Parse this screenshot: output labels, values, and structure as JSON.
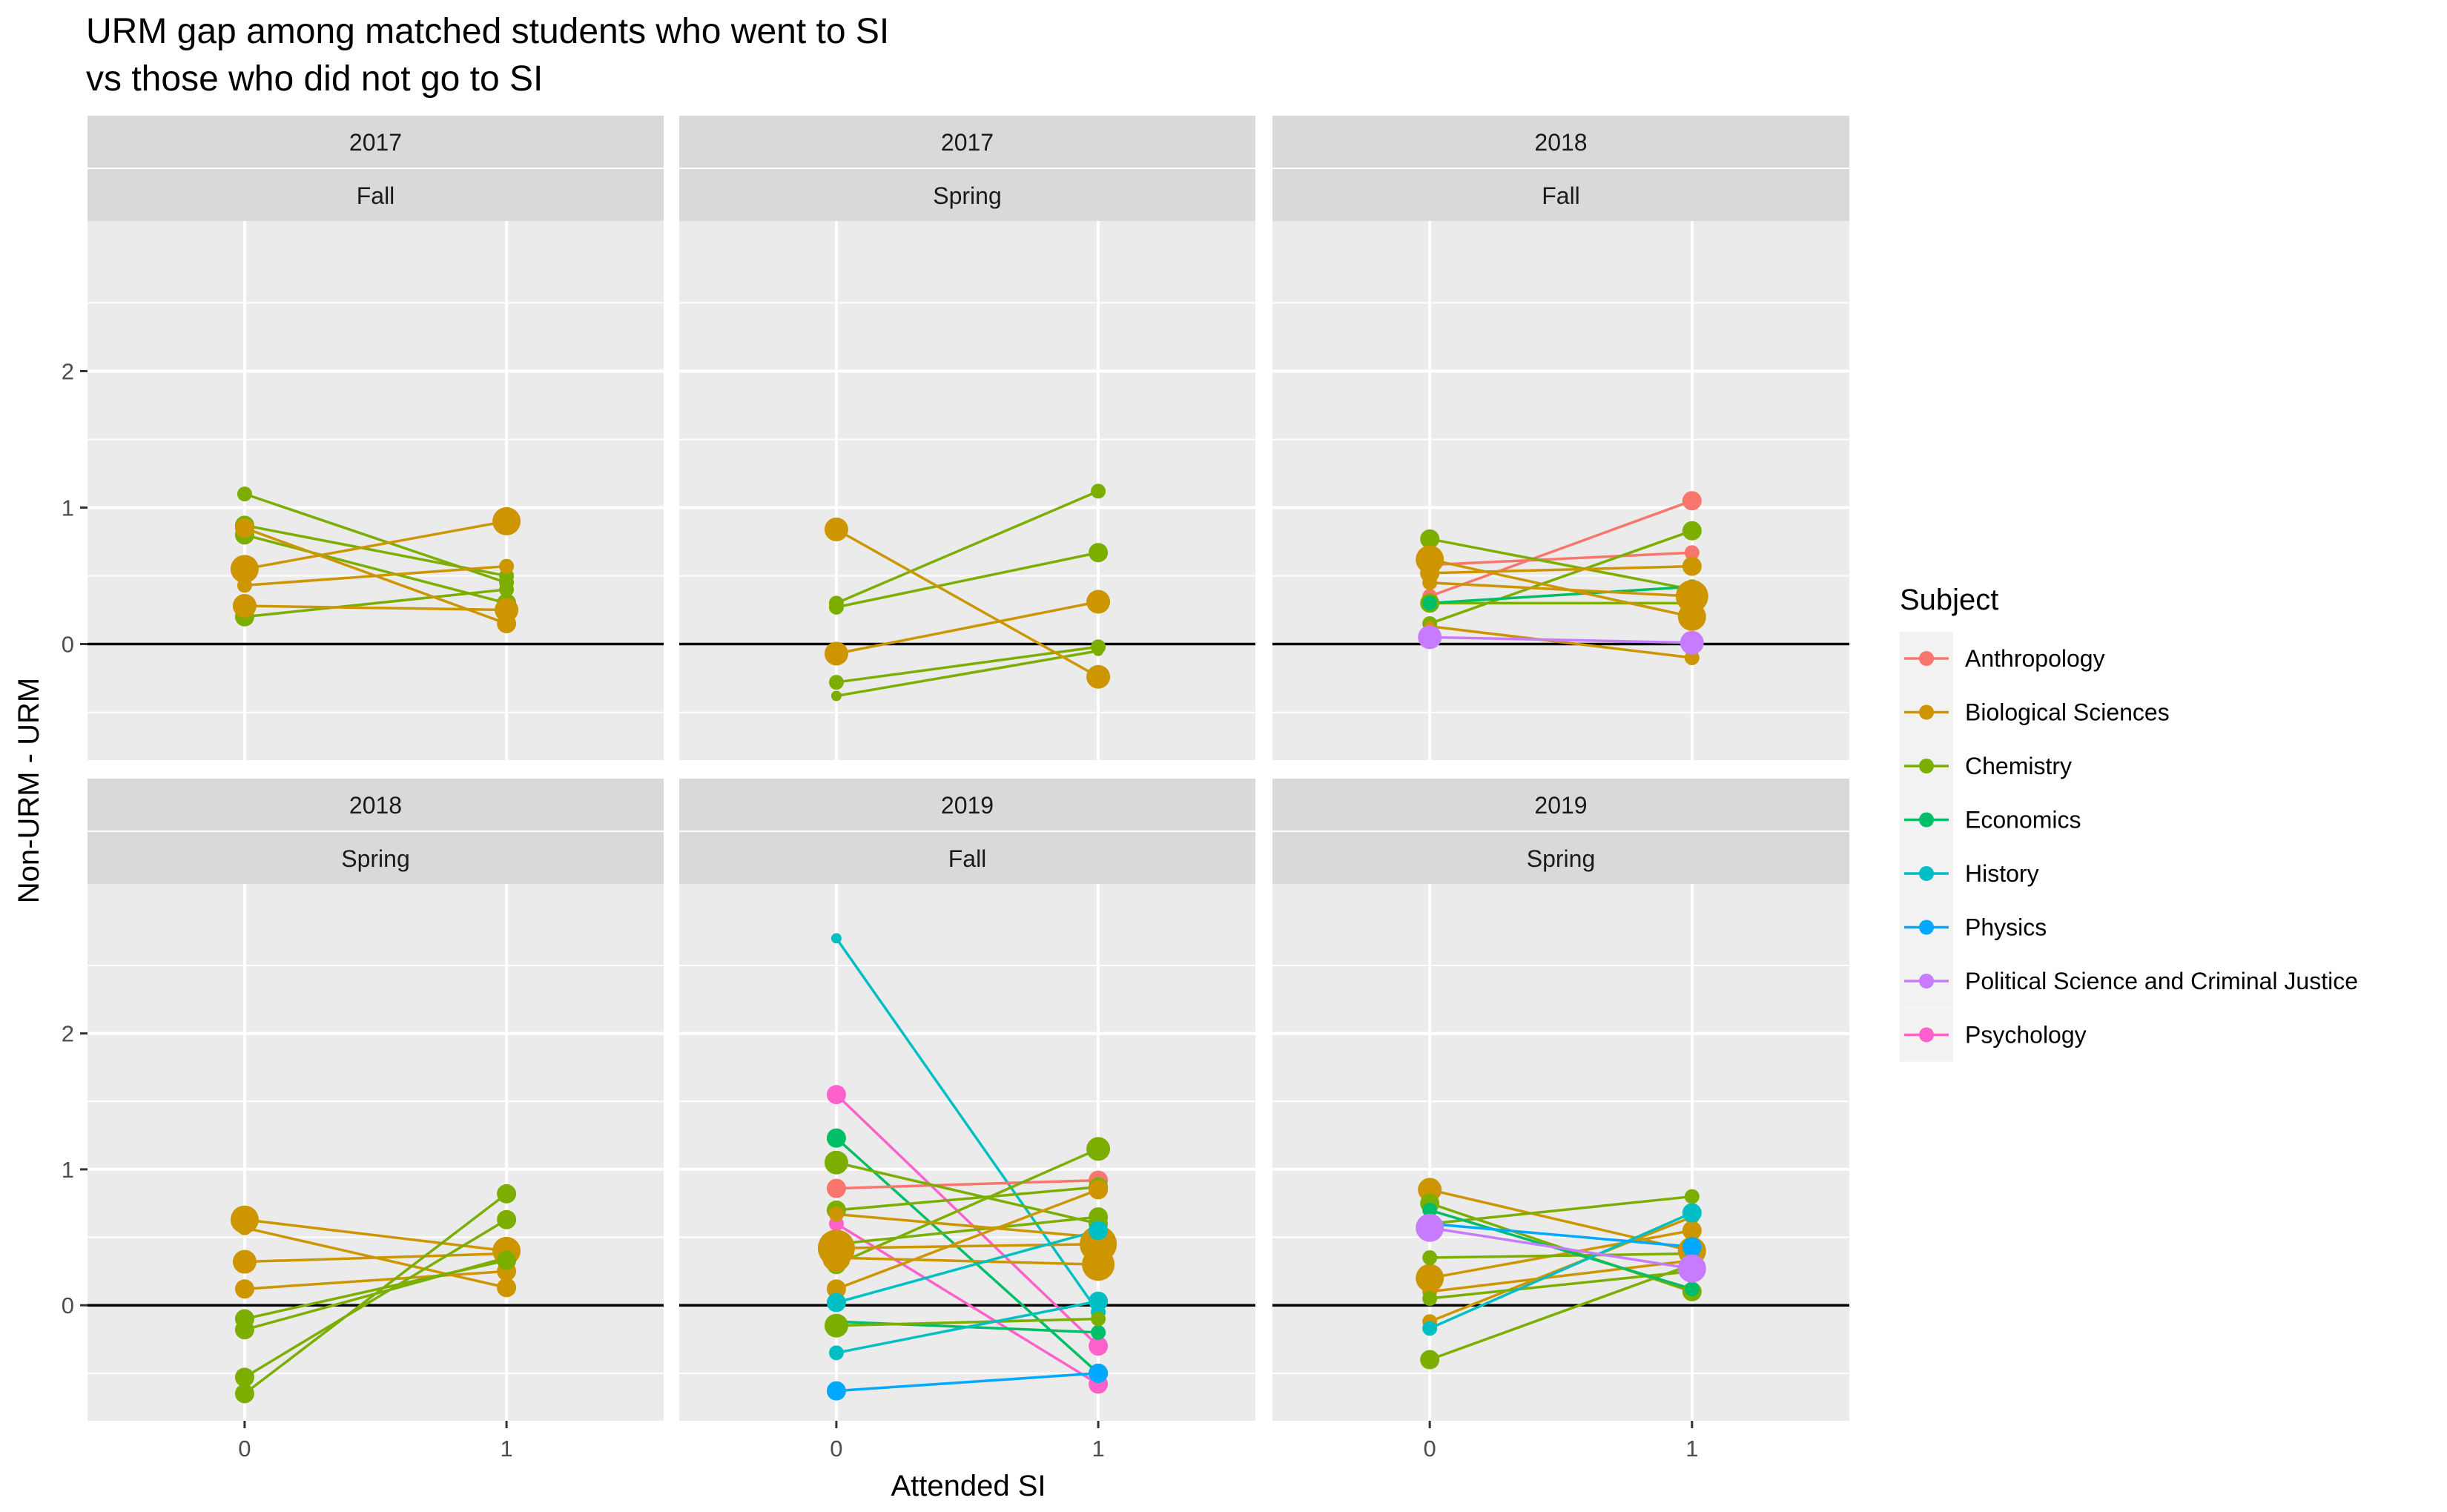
{
  "chart_data": {
    "type": "line",
    "title": "URM gap among matched students who went to SI\n vs those who did not go to SI",
    "xlabel": "Attended SI",
    "ylabel": "Non-URM - URM",
    "x_ticks": [
      "0",
      "1"
    ],
    "y_ticks": [
      0,
      1,
      2
    ],
    "ylim": [
      -0.85,
      3.1
    ],
    "zero_line": true,
    "grid": true,
    "legend": {
      "title": "Subject",
      "placement": "right",
      "entries": [
        {
          "name": "Anthropology",
          "color": "#F8766D"
        },
        {
          "name": "Biological Sciences",
          "color": "#CD9600"
        },
        {
          "name": "Chemistry",
          "color": "#7CAE00"
        },
        {
          "name": "Economics",
          "color": "#00BE67"
        },
        {
          "name": "History",
          "color": "#00BFC4"
        },
        {
          "name": "Physics",
          "color": "#00A9FF"
        },
        {
          "name": "Political Science and Criminal Justice",
          "color": "#C77CFF"
        },
        {
          "name": "Psychology",
          "color": "#FF61CC"
        }
      ]
    },
    "panels": [
      {
        "year": "2017",
        "term": "Fall",
        "lines": [
          {
            "s": 2,
            "y0": 1.1,
            "y1": 0.45,
            "n0": 2,
            "n1": 2
          },
          {
            "s": 2,
            "y0": 0.87,
            "y1": 0.5,
            "n0": 3,
            "n1": 2
          },
          {
            "s": 2,
            "y0": 0.8,
            "y1": 0.3,
            "n0": 3,
            "n1": 3
          },
          {
            "s": 2,
            "y0": 0.2,
            "y1": 0.4,
            "n0": 3,
            "n1": 2
          },
          {
            "s": 1,
            "y0": 0.55,
            "y1": 0.9,
            "n0": 5,
            "n1": 5
          },
          {
            "s": 1,
            "y0": 0.43,
            "y1": 0.57,
            "n0": 2,
            "n1": 2
          },
          {
            "s": 1,
            "y0": 0.28,
            "y1": 0.25,
            "n0": 4,
            "n1": 4
          },
          {
            "s": 1,
            "y0": 0.85,
            "y1": 0.15,
            "n0": 3,
            "n1": 3
          }
        ]
      },
      {
        "year": "2017",
        "term": "Spring",
        "lines": [
          {
            "s": 2,
            "y0": 0.3,
            "y1": 1.12,
            "n0": 2,
            "n1": 2
          },
          {
            "s": 2,
            "y0": 0.27,
            "y1": 0.67,
            "n0": 2,
            "n1": 3
          },
          {
            "s": 2,
            "y0": -0.28,
            "y1": -0.02,
            "n0": 2,
            "n1": 2
          },
          {
            "s": 2,
            "y0": -0.38,
            "y1": -0.05,
            "n0": 1,
            "n1": 1
          },
          {
            "s": 1,
            "y0": 0.84,
            "y1": -0.24,
            "n0": 4,
            "n1": 4
          },
          {
            "s": 1,
            "y0": -0.07,
            "y1": 0.31,
            "n0": 4,
            "n1": 4
          }
        ]
      },
      {
        "year": "2018",
        "term": "Fall",
        "lines": [
          {
            "s": 0,
            "y0": 0.35,
            "y1": 1.05,
            "n0": 2,
            "n1": 3
          },
          {
            "s": 0,
            "y0": 0.58,
            "y1": 0.67,
            "n0": 2,
            "n1": 2
          },
          {
            "s": 2,
            "y0": 0.77,
            "y1": 0.4,
            "n0": 3,
            "n1": 2
          },
          {
            "s": 2,
            "y0": 0.3,
            "y1": 0.3,
            "n0": 3,
            "n1": 2
          },
          {
            "s": 2,
            "y0": 0.15,
            "y1": 0.83,
            "n0": 2,
            "n1": 3
          },
          {
            "s": 3,
            "y0": 0.3,
            "y1": 0.42,
            "n0": 2,
            "n1": 2
          },
          {
            "s": 1,
            "y0": 0.62,
            "y1": 0.2,
            "n0": 5,
            "n1": 5
          },
          {
            "s": 1,
            "y0": 0.52,
            "y1": 0.57,
            "n0": 3,
            "n1": 3
          },
          {
            "s": 1,
            "y0": 0.45,
            "y1": 0.35,
            "n0": 2,
            "n1": 6
          },
          {
            "s": 1,
            "y0": 0.13,
            "y1": -0.1,
            "n0": 1,
            "n1": 2
          },
          {
            "s": 6,
            "y0": 0.05,
            "y1": 0.01,
            "n0": 4,
            "n1": 4
          }
        ]
      },
      {
        "year": "2018",
        "term": "Spring",
        "lines": [
          {
            "s": 1,
            "y0": 0.63,
            "y1": 0.4,
            "n0": 5,
            "n1": 5
          },
          {
            "s": 1,
            "y0": 0.32,
            "y1": 0.38,
            "n0": 4,
            "n1": 4
          },
          {
            "s": 1,
            "y0": 0.12,
            "y1": 0.25,
            "n0": 3,
            "n1": 3
          },
          {
            "s": 1,
            "y0": 0.57,
            "y1": 0.13,
            "n0": 2,
            "n1": 3
          },
          {
            "s": 2,
            "y0": -0.1,
            "y1": 0.33,
            "n0": 3,
            "n1": 3
          },
          {
            "s": 2,
            "y0": -0.18,
            "y1": 0.35,
            "n0": 3,
            "n1": 2
          },
          {
            "s": 2,
            "y0": -0.53,
            "y1": 0.63,
            "n0": 3,
            "n1": 3
          },
          {
            "s": 2,
            "y0": -0.65,
            "y1": 0.82,
            "n0": 3,
            "n1": 3
          }
        ]
      },
      {
        "year": "2019",
        "term": "Fall",
        "lines": [
          {
            "s": 4,
            "y0": 2.7,
            "y1": -0.05,
            "n0": 1,
            "n1": 2
          },
          {
            "s": 7,
            "y0": 1.55,
            "y1": -0.3,
            "n0": 3,
            "n1": 3
          },
          {
            "s": 7,
            "y0": 0.6,
            "y1": -0.58,
            "n0": 2,
            "n1": 3
          },
          {
            "s": 3,
            "y0": 1.23,
            "y1": -0.5,
            "n0": 3,
            "n1": 3
          },
          {
            "s": 3,
            "y0": -0.12,
            "y1": -0.2,
            "n0": 2,
            "n1": 2
          },
          {
            "s": 0,
            "y0": 0.86,
            "y1": 0.92,
            "n0": 3,
            "n1": 3
          },
          {
            "s": 2,
            "y0": 1.05,
            "y1": 0.6,
            "n0": 4,
            "n1": 3
          },
          {
            "s": 2,
            "y0": 0.7,
            "y1": 0.87,
            "n0": 3,
            "n1": 3
          },
          {
            "s": 2,
            "y0": 0.3,
            "y1": 1.15,
            "n0": 3,
            "n1": 4
          },
          {
            "s": 2,
            "y0": -0.15,
            "y1": -0.1,
            "n0": 4,
            "n1": 2
          },
          {
            "s": 2,
            "y0": 0.45,
            "y1": 0.65,
            "n0": 4,
            "n1": 3
          },
          {
            "s": 1,
            "y0": 0.42,
            "y1": 0.45,
            "n0": 7,
            "n1": 7
          },
          {
            "s": 1,
            "y0": 0.35,
            "y1": 0.3,
            "n0": 5,
            "n1": 6
          },
          {
            "s": 1,
            "y0": 0.12,
            "y1": 0.85,
            "n0": 3,
            "n1": 3
          },
          {
            "s": 1,
            "y0": 0.67,
            "y1": 0.5,
            "n0": 2,
            "n1": 4
          },
          {
            "s": 4,
            "y0": -0.35,
            "y1": 0.03,
            "n0": 2,
            "n1": 3
          },
          {
            "s": 4,
            "y0": 0.02,
            "y1": 0.55,
            "n0": 3,
            "n1": 3
          },
          {
            "s": 5,
            "y0": -0.63,
            "y1": -0.5,
            "n0": 3,
            "n1": 3
          }
        ]
      },
      {
        "year": "2019",
        "term": "Spring",
        "lines": [
          {
            "s": 1,
            "y0": 0.85,
            "y1": 0.4,
            "n0": 4,
            "n1": 5
          },
          {
            "s": 1,
            "y0": 0.2,
            "y1": 0.55,
            "n0": 5,
            "n1": 3
          },
          {
            "s": 1,
            "y0": -0.12,
            "y1": 0.65,
            "n0": 2,
            "n1": 2
          },
          {
            "s": 1,
            "y0": 0.1,
            "y1": 0.33,
            "n0": 2,
            "n1": 2
          },
          {
            "s": 2,
            "y0": 0.75,
            "y1": 0.1,
            "n0": 3,
            "n1": 3
          },
          {
            "s": 2,
            "y0": 0.6,
            "y1": 0.8,
            "n0": 3,
            "n1": 2
          },
          {
            "s": 2,
            "y0": 0.35,
            "y1": 0.38,
            "n0": 2,
            "n1": 2
          },
          {
            "s": 2,
            "y0": 0.05,
            "y1": 0.25,
            "n0": 2,
            "n1": 2
          },
          {
            "s": 2,
            "y0": -0.4,
            "y1": 0.3,
            "n0": 3,
            "n1": 3
          },
          {
            "s": 3,
            "y0": 0.7,
            "y1": 0.12,
            "n0": 2,
            "n1": 2
          },
          {
            "s": 4,
            "y0": -0.17,
            "y1": 0.68,
            "n0": 2,
            "n1": 3
          },
          {
            "s": 5,
            "y0": 0.6,
            "y1": 0.43,
            "n0": 3,
            "n1": 3
          },
          {
            "s": 6,
            "y0": 0.57,
            "y1": 0.27,
            "n0": 5,
            "n1": 5
          }
        ]
      }
    ]
  }
}
